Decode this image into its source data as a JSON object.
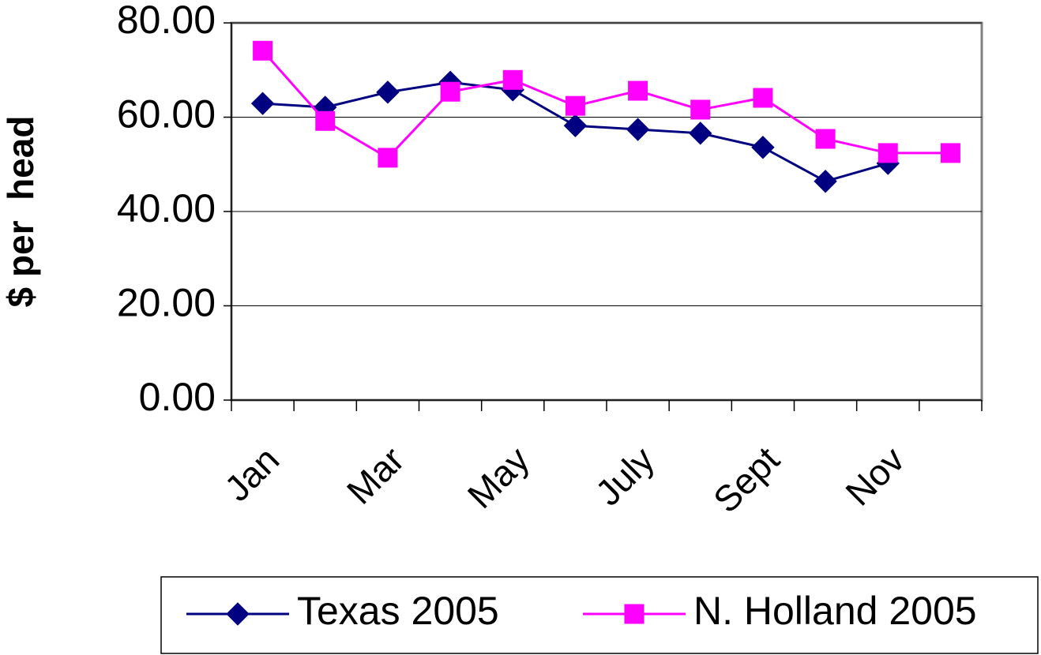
{
  "chart_data": {
    "type": "line",
    "y_label": "$ per  head",
    "categories": [
      "Jan",
      null,
      "Mar",
      null,
      "May",
      null,
      "July",
      null,
      "Sept",
      null,
      "Nov",
      null
    ],
    "series": [
      {
        "name": "Texas 2005",
        "color": "#000080",
        "marker": "diamond",
        "values": [
          62.9,
          62.1,
          65.3,
          67.4,
          65.8,
          58.2,
          57.4,
          56.6,
          53.6,
          46.4,
          50.2,
          null
        ]
      },
      {
        "name": "N. Holland 2005",
        "color": "#ff00ff",
        "marker": "square",
        "values": [
          74.1,
          59.2,
          51.4,
          65.4,
          67.9,
          62.4,
          65.6,
          61.6,
          64.1,
          55.4,
          52.4,
          52.4
        ]
      }
    ],
    "ylim": [
      0,
      80
    ],
    "yticks": [
      {
        "value": 0,
        "label": "0.00"
      },
      {
        "value": 20,
        "label": "20.00"
      },
      {
        "value": 40,
        "label": "40.00"
      },
      {
        "value": 60,
        "label": "60.00"
      },
      {
        "value": 80,
        "label": "80.00"
      }
    ],
    "grid": true,
    "legend": "bottom"
  }
}
